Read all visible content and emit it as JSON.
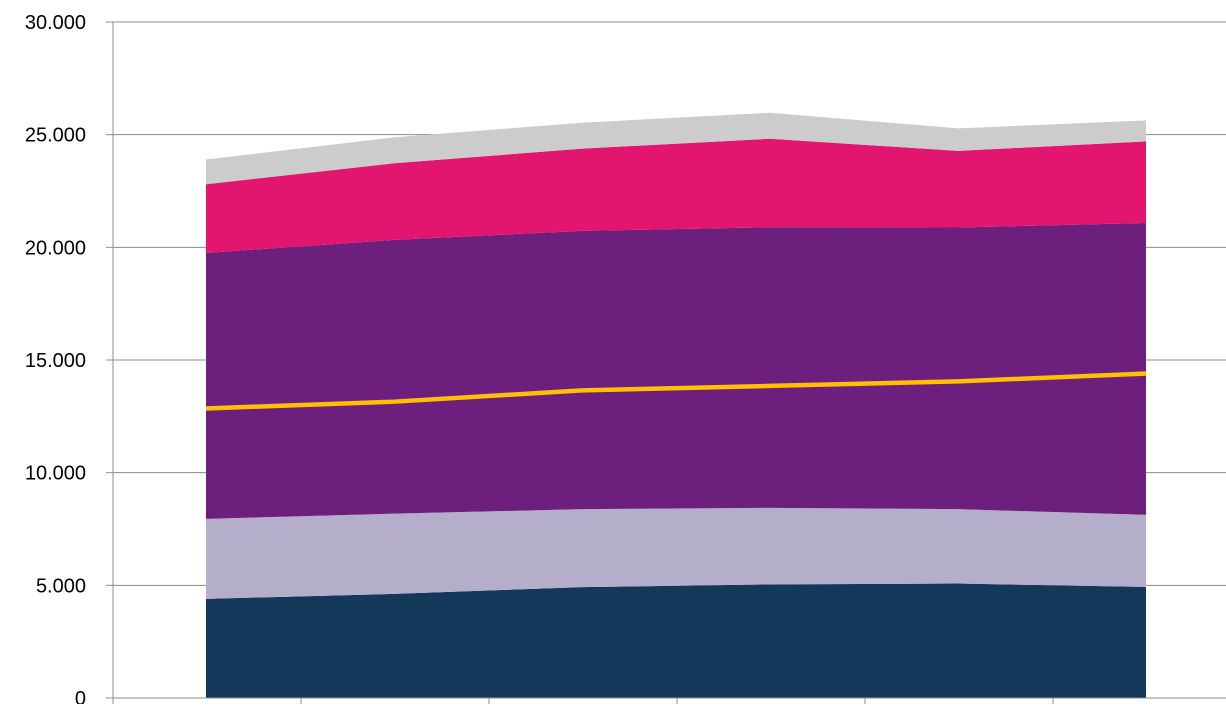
{
  "chart_data": {
    "type": "area",
    "stacked": true,
    "title": "",
    "xlabel": "",
    "ylabel": "",
    "ylim": [
      0,
      30000
    ],
    "y_ticks": [
      0,
      5000,
      10000,
      15000,
      20000,
      25000,
      30000
    ],
    "y_tick_labels": [
      "0",
      "5.000",
      "10.000",
      "15.000",
      "20.000",
      "25.000",
      "30.000"
    ],
    "x_positions": 6,
    "grid": "horizontal",
    "legend": "none",
    "series": [
      {
        "color": "#13385a",
        "values": [
          4400,
          4620,
          4920,
          5040,
          5080,
          4930
        ]
      },
      {
        "color": "#b4aecb",
        "values": [
          3550,
          3560,
          3460,
          3400,
          3300,
          3200
        ]
      },
      {
        "color": "#6d1f7e",
        "values": [
          11800,
          12150,
          12350,
          12450,
          12500,
          12950
        ]
      },
      {
        "color": "#e3166f",
        "values": [
          3050,
          3400,
          3650,
          3930,
          3400,
          3620
        ]
      },
      {
        "color": "#cccccc",
        "values": [
          1100,
          1150,
          1150,
          1150,
          1000,
          930
        ]
      }
    ],
    "lines": [
      {
        "color": "#ffc000",
        "values": [
          12850,
          13150,
          13650,
          13850,
          14050,
          14400
        ]
      }
    ]
  }
}
